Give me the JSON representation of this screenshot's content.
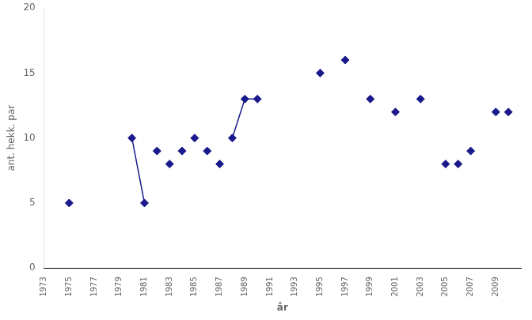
{
  "chart_data": {
    "type": "scatter",
    "xlabel": "år",
    "ylabel": "ant. hekk. par",
    "series": [
      {
        "type": "scatter",
        "color": "#1a1a8c",
        "marker": "diamond",
        "x": [
          1975,
          1980,
          1981,
          1982,
          1983,
          1984,
          1985,
          1986,
          1987,
          1988,
          1989,
          1990,
          1995,
          1997,
          1999,
          2001,
          2003,
          2005,
          2006,
          2007,
          2009,
          2010
        ],
        "values": [
          5,
          10,
          5,
          9,
          8,
          9,
          10,
          9,
          8,
          10,
          13,
          13,
          15,
          16,
          13,
          12,
          13,
          8,
          8,
          9,
          12,
          12
        ]
      },
      {
        "type": "line",
        "color": "#1a1a8c",
        "x": [
          1980,
          1981
        ],
        "values": [
          10,
          5
        ]
      },
      {
        "type": "line",
        "color": "#1a1a8c",
        "x": [
          1988,
          1989,
          1990
        ],
        "values": [
          10,
          13,
          13
        ]
      }
    ],
    "xlim": [
      1973,
      2011
    ],
    "xticks": [
      1973,
      1975,
      1977,
      1979,
      1981,
      1983,
      1985,
      1987,
      1989,
      1991,
      1993,
      1995,
      1997,
      1999,
      2001,
      2003,
      2005,
      2007,
      2009
    ],
    "ylim": [
      0,
      20
    ],
    "yticks": [
      0,
      5,
      10,
      15,
      20
    ],
    "grid": false
  }
}
